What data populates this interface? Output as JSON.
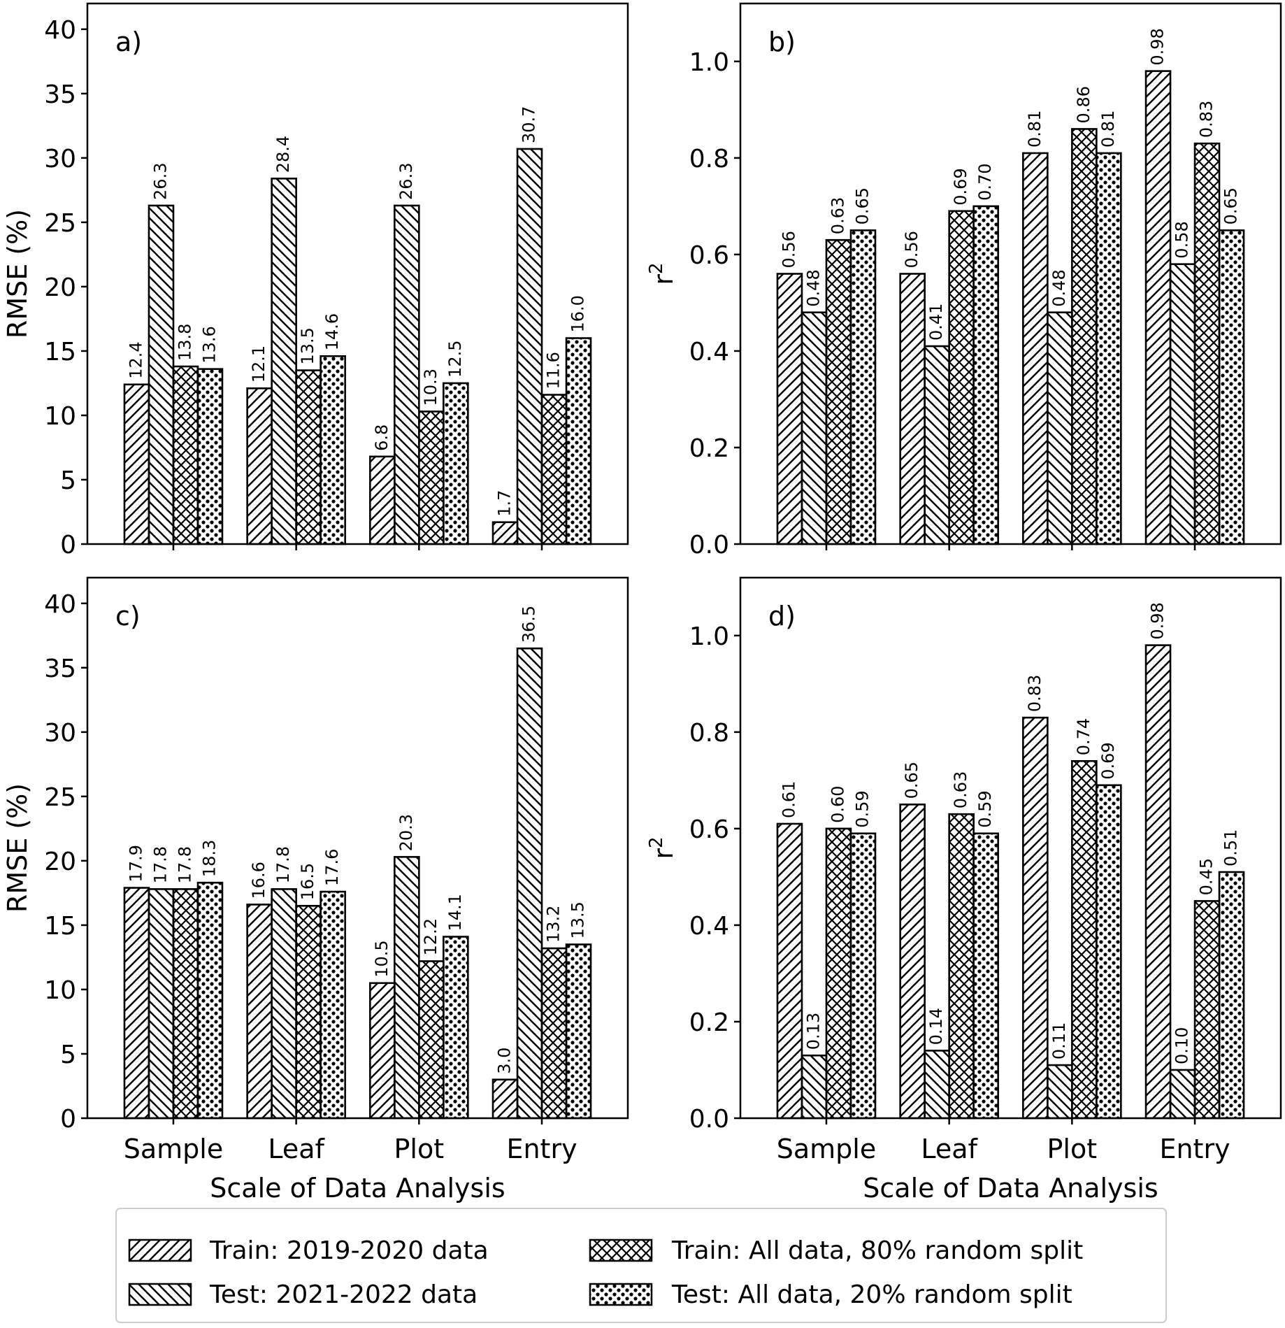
{
  "chart_data": [
    {
      "panel": "a)",
      "type": "bar",
      "categories": [
        "Sample",
        "Leaf",
        "Plot",
        "Entry"
      ],
      "ylabel": "RMSE (%)",
      "xlabel": "",
      "ylim": [
        0,
        42
      ],
      "yticks": [
        0,
        5,
        10,
        15,
        20,
        25,
        30,
        35,
        40
      ],
      "ytick_labels": [
        "0",
        "5",
        "10",
        "15",
        "20",
        "25",
        "30",
        "35",
        "40"
      ],
      "series": [
        {
          "values": [
            12.4,
            12.1,
            6.8,
            1.7
          ],
          "labels": [
            "12.4",
            "12.1",
            "6.8",
            "1.7"
          ]
        },
        {
          "values": [
            26.3,
            28.4,
            26.3,
            30.7
          ],
          "labels": [
            "26.3",
            "28.4",
            "26.3",
            "30.7"
          ]
        },
        {
          "values": [
            13.8,
            13.5,
            10.3,
            11.6
          ],
          "labels": [
            "13.8",
            "13.5",
            "10.3",
            "11.6"
          ]
        },
        {
          "values": [
            13.6,
            14.6,
            12.5,
            16.0
          ],
          "labels": [
            "13.6",
            "14.6",
            "12.5",
            "16.0"
          ]
        }
      ]
    },
    {
      "panel": "b)",
      "type": "bar",
      "categories": [
        "Sample",
        "Leaf",
        "Plot",
        "Entry"
      ],
      "ylabel": "r",
      "ylabel_sup": "2",
      "xlabel": "",
      "ylim": [
        0,
        1.12
      ],
      "yticks": [
        0,
        0.2,
        0.4,
        0.6,
        0.8,
        1.0
      ],
      "ytick_labels": [
        "0.0",
        "0.2",
        "0.4",
        "0.6",
        "0.8",
        "1.0"
      ],
      "series": [
        {
          "values": [
            0.56,
            0.56,
            0.81,
            0.98
          ],
          "labels": [
            "0.56",
            "0.56",
            "0.81",
            "0.98"
          ]
        },
        {
          "values": [
            0.48,
            0.41,
            0.48,
            0.58
          ],
          "labels": [
            "0.48",
            "0.41",
            "0.48",
            "0.58"
          ]
        },
        {
          "values": [
            0.63,
            0.69,
            0.86,
            0.83
          ],
          "labels": [
            "0.63",
            "0.69",
            "0.86",
            "0.83"
          ]
        },
        {
          "values": [
            0.65,
            0.7,
            0.81,
            0.65
          ],
          "labels": [
            "0.65",
            "0.70",
            "0.81",
            "0.65"
          ]
        }
      ]
    },
    {
      "panel": "c)",
      "type": "bar",
      "categories": [
        "Sample",
        "Leaf",
        "Plot",
        "Entry"
      ],
      "ylabel": "RMSE (%)",
      "xlabel": "Scale of Data Analysis",
      "ylim": [
        0,
        42
      ],
      "yticks": [
        0,
        5,
        10,
        15,
        20,
        25,
        30,
        35,
        40
      ],
      "ytick_labels": [
        "0",
        "5",
        "10",
        "15",
        "20",
        "25",
        "30",
        "35",
        "40"
      ],
      "series": [
        {
          "values": [
            17.9,
            16.6,
            10.5,
            3.0
          ],
          "labels": [
            "17.9",
            "16.6",
            "10.5",
            "3.0"
          ]
        },
        {
          "values": [
            17.8,
            17.8,
            20.3,
            36.5
          ],
          "labels": [
            "17.8",
            "17.8",
            "20.3",
            "36.5"
          ]
        },
        {
          "values": [
            17.8,
            16.5,
            12.2,
            13.2
          ],
          "labels": [
            "17.8",
            "16.5",
            "12.2",
            "13.2"
          ]
        },
        {
          "values": [
            18.3,
            17.6,
            14.1,
            13.5
          ],
          "labels": [
            "18.3",
            "17.6",
            "14.1",
            "13.5"
          ]
        }
      ]
    },
    {
      "panel": "d)",
      "type": "bar",
      "categories": [
        "Sample",
        "Leaf",
        "Plot",
        "Entry"
      ],
      "ylabel": "r",
      "ylabel_sup": "2",
      "xlabel": "Scale of Data Analysis",
      "ylim": [
        0,
        1.12
      ],
      "yticks": [
        0,
        0.2,
        0.4,
        0.6,
        0.8,
        1.0
      ],
      "ytick_labels": [
        "0.0",
        "0.2",
        "0.4",
        "0.6",
        "0.8",
        "1.0"
      ],
      "series": [
        {
          "values": [
            0.61,
            0.65,
            0.83,
            0.98
          ],
          "labels": [
            "0.61",
            "0.65",
            "0.83",
            "0.98"
          ]
        },
        {
          "values": [
            0.13,
            0.14,
            0.11,
            0.1
          ],
          "labels": [
            "0.13",
            "0.14",
            "0.11",
            "0.10"
          ]
        },
        {
          "values": [
            0.6,
            0.63,
            0.74,
            0.45
          ],
          "labels": [
            "0.60",
            "0.63",
            "0.74",
            "0.45"
          ]
        },
        {
          "values": [
            0.59,
            0.59,
            0.69,
            0.51
          ],
          "labels": [
            "0.59",
            "0.59",
            "0.69",
            "0.51"
          ]
        }
      ]
    }
  ],
  "legend": {
    "placement": "bottom-center",
    "entries": [
      {
        "label": "Train: 2019-2020 data",
        "hatch": "forward-diagonal"
      },
      {
        "label": "Test: 2021-2022 data",
        "hatch": "back-diagonal"
      },
      {
        "label": "Train: All data, 80% random split",
        "hatch": "cross"
      },
      {
        "label": "Test: All data, 20% random split",
        "hatch": "dots"
      }
    ]
  },
  "colors": {
    "stroke": "#000000",
    "fill": "#ffffff",
    "legend_border": "#cccccc"
  }
}
